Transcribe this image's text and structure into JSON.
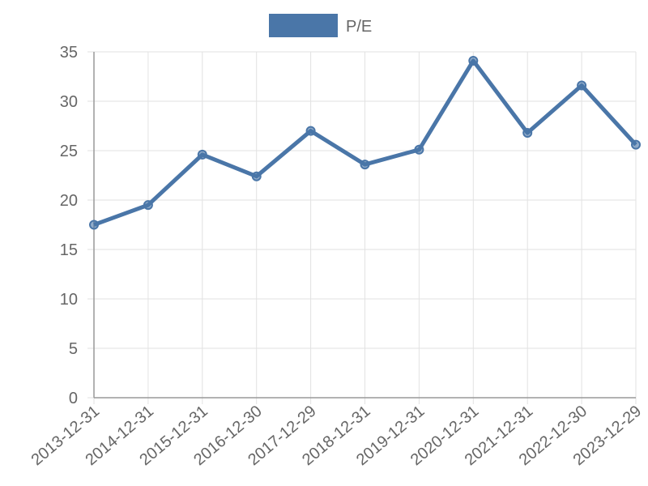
{
  "chart_data": {
    "type": "line",
    "categories": [
      "2013-12-31",
      "2014-12-31",
      "2015-12-31",
      "2016-12-30",
      "2017-12-29",
      "2018-12-31",
      "2019-12-31",
      "2020-12-31",
      "2021-12-31",
      "2022-12-30",
      "2023-12-29"
    ],
    "series": [
      {
        "name": "P/E",
        "color": "#4a76a8",
        "values": [
          17.5,
          19.5,
          24.6,
          22.4,
          27.0,
          23.6,
          25.1,
          34.1,
          26.8,
          31.6,
          25.6
        ]
      }
    ],
    "ylim": [
      0,
      35
    ],
    "yticks": [
      0,
      5,
      10,
      15,
      20,
      25,
      30,
      35
    ],
    "grid": true,
    "legend": "top"
  }
}
